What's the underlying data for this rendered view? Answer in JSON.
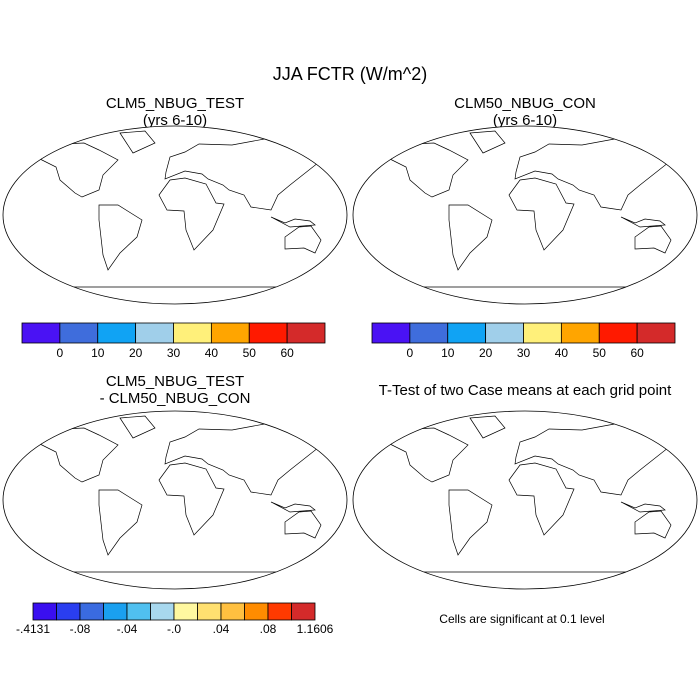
{
  "title": "JJA FCTR (W/m^2)",
  "panels": [
    {
      "title": [
        "CLM5_NBUG_TEST",
        "(yrs 6-10)"
      ],
      "colorbar": {
        "colors": [
          "#4a12f4",
          "#3f6ddc",
          "#10a3f4",
          "#a0cfea",
          "#fff07a",
          "#ffa500",
          "#ff1a00",
          "#d42a2a"
        ],
        "labels": [
          "0",
          "10",
          "20",
          "30",
          "40",
          "50",
          "60"
        ]
      }
    },
    {
      "title": [
        "CLM50_NBUG_CON",
        "(yrs 6-10)"
      ],
      "colorbar": {
        "colors": [
          "#4a12f4",
          "#3f6ddc",
          "#10a3f4",
          "#a0cfea",
          "#fff07a",
          "#ffa500",
          "#ff1a00",
          "#d42a2a"
        ],
        "labels": [
          "0",
          "10",
          "20",
          "30",
          "40",
          "50",
          "60"
        ]
      }
    },
    {
      "title": [
        "CLM5_NBUG_TEST",
        "- CLM50_NBUG_CON"
      ],
      "colorbar": {
        "colors": [
          "#3a0ff0",
          "#2a3ef0",
          "#3a6be0",
          "#1aa0f0",
          "#50c0f0",
          "#a8d8ee",
          "#fff8a0",
          "#ffe070",
          "#ffc040",
          "#ff8c00",
          "#ff3a00",
          "#d42a2a"
        ],
        "labels": [
          "-.4131",
          "-.08",
          "-.04",
          "-.0",
          ".04",
          ".08",
          "1.1606"
        ]
      }
    },
    {
      "title": [
        "T-Test of two Case means at each grid point"
      ],
      "note": "Cells are significant at 0.1 level"
    }
  ]
}
